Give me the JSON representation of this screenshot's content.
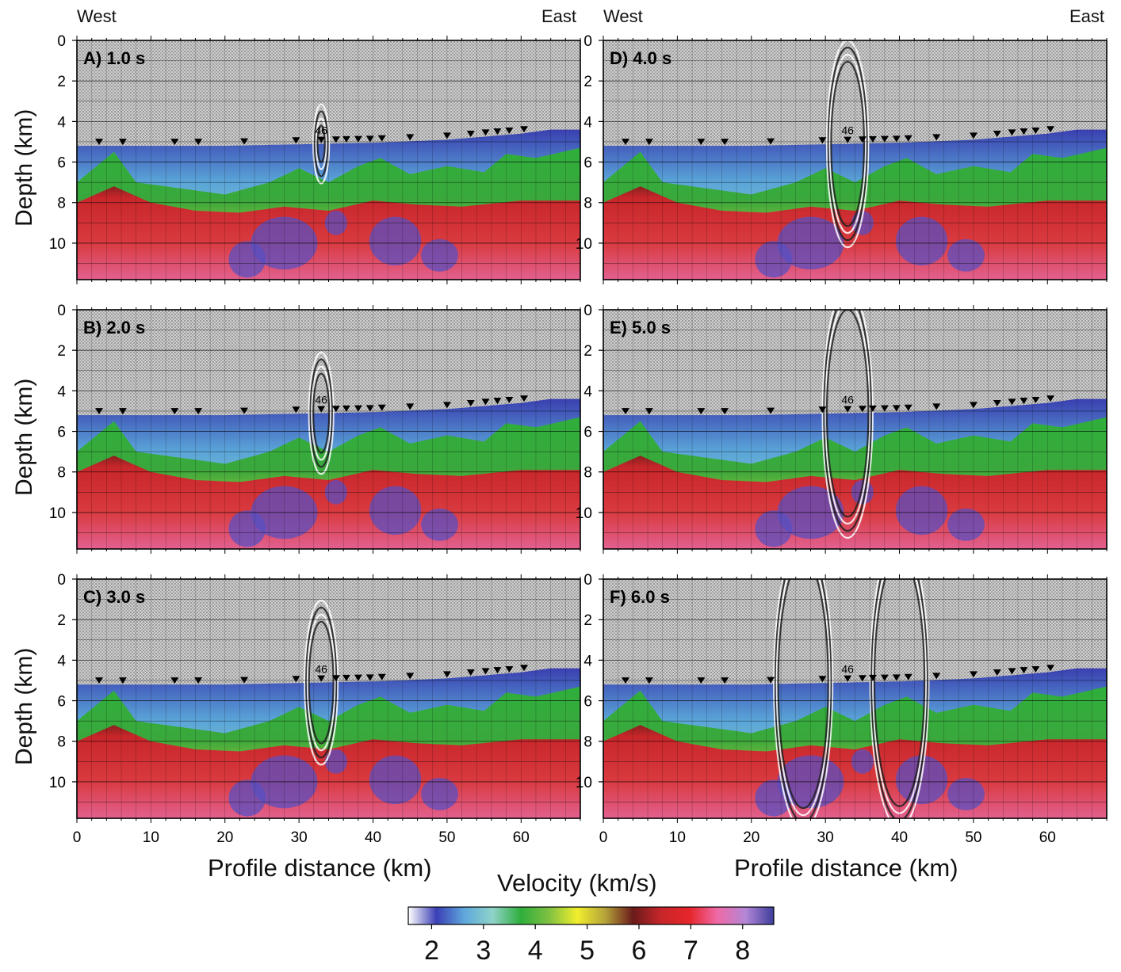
{
  "header": {
    "left_west": "West",
    "left_east": "East",
    "right_west": "West",
    "right_east": "East"
  },
  "axes": {
    "ylabel": "Depth (km)",
    "xlabel": "Profile distance (km)",
    "xlim": [
      0,
      68
    ],
    "ylim": [
      0,
      11.8
    ],
    "xticks": [
      0,
      10,
      20,
      30,
      40,
      50,
      60
    ],
    "yticks": [
      0,
      2,
      4,
      6,
      8,
      10
    ],
    "grid": true
  },
  "colorbar": {
    "label": "Velocity (km/s)",
    "ticks": [
      2,
      3,
      4,
      5,
      6,
      7,
      8
    ],
    "range": [
      1.55,
      8.6
    ],
    "colors": [
      "#ffffff",
      "#3b3fb5",
      "#5fa8dc",
      "#8fd3c9",
      "#2fae3c",
      "#7fc142",
      "#f1ee2e",
      "#b5a43a",
      "#6a1a1a",
      "#c7262a",
      "#e6262a",
      "#ef6aa7",
      "#b387d6",
      "#3d3d9c"
    ]
  },
  "station_label": "46",
  "chart_data": [
    {
      "type": "heatmap",
      "title": "A) 1.0 s",
      "time_s": 1.0,
      "wavefront_sources_km": [
        33
      ]
    },
    {
      "type": "heatmap",
      "title": "B) 2.0 s",
      "time_s": 2.0,
      "wavefront_sources_km": [
        33
      ]
    },
    {
      "type": "heatmap",
      "title": "C) 3.0 s",
      "time_s": 3.0,
      "wavefront_sources_km": [
        33
      ]
    },
    {
      "type": "heatmap",
      "title": "D) 4.0 s",
      "time_s": 4.0,
      "wavefront_sources_km": [
        33
      ]
    },
    {
      "type": "heatmap",
      "title": "E) 5.0 s",
      "time_s": 5.0,
      "wavefront_sources_km": [
        33
      ]
    },
    {
      "type": "heatmap",
      "title": "F) 6.0 s",
      "time_s": 6.0,
      "wavefront_sources_km": [
        27,
        40
      ]
    }
  ],
  "stations_km": [
    3,
    6.2,
    13.2,
    16.4,
    22.6,
    29.6,
    33,
    35,
    36.4,
    38,
    39.6,
    41.2,
    45,
    50,
    53.2,
    55.2,
    56.8,
    58.4,
    60.4
  ],
  "seafloor_km": [
    [
      0,
      5.2
    ],
    [
      20,
      5.2
    ],
    [
      40,
      5.05
    ],
    [
      50,
      4.9
    ],
    [
      60,
      4.6
    ],
    [
      64,
      4.4
    ],
    [
      68,
      4.4
    ]
  ],
  "layer_boundaries_km": {
    "v4": [
      [
        0,
        7.0
      ],
      [
        5,
        5.5
      ],
      [
        8,
        7.0
      ],
      [
        14,
        7.3
      ],
      [
        20,
        7.6
      ],
      [
        26,
        7.0
      ],
      [
        30,
        6.3
      ],
      [
        34,
        7.0
      ],
      [
        38,
        6.2
      ],
      [
        41,
        5.8
      ],
      [
        45,
        6.6
      ],
      [
        50,
        6.2
      ],
      [
        55,
        6.5
      ],
      [
        58,
        5.6
      ],
      [
        62,
        5.8
      ],
      [
        68,
        5.3
      ]
    ],
    "v6": [
      [
        0,
        8.0
      ],
      [
        5,
        7.2
      ],
      [
        10,
        8.0
      ],
      [
        16,
        8.4
      ],
      [
        22,
        8.5
      ],
      [
        28,
        8.2
      ],
      [
        34,
        8.4
      ],
      [
        40,
        7.9
      ],
      [
        46,
        8.1
      ],
      [
        52,
        8.2
      ],
      [
        60,
        7.9
      ],
      [
        68,
        7.9
      ]
    ]
  },
  "high_velocity_anomalies": [
    {
      "x": 28,
      "z": 10.0,
      "rx": 4.5,
      "rz": 1.3
    },
    {
      "x": 23,
      "z": 10.8,
      "rx": 2.5,
      "rz": 0.9
    },
    {
      "x": 43,
      "z": 9.9,
      "rx": 3.5,
      "rz": 1.2
    },
    {
      "x": 49,
      "z": 10.6,
      "rx": 2.5,
      "rz": 0.8
    },
    {
      "x": 35,
      "z": 9.0,
      "rx": 1.5,
      "rz": 0.6
    }
  ]
}
